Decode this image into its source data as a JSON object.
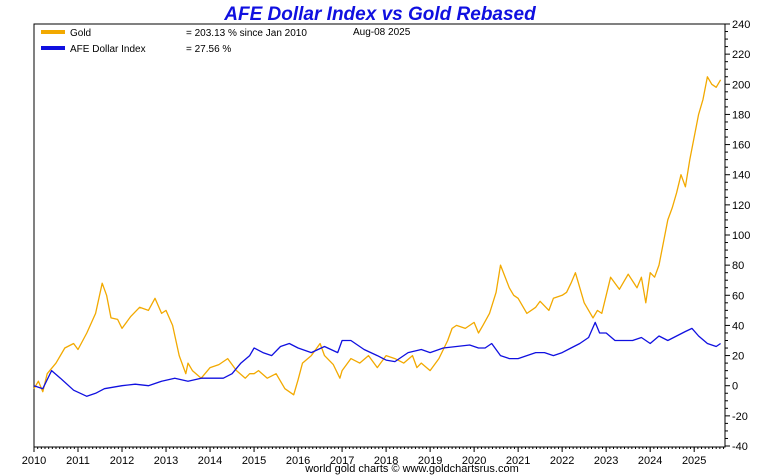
{
  "chart_data": {
    "type": "line",
    "title": "AFE Dollar Index vs Gold Rebased",
    "date_label": "Aug-08  2025",
    "footer": "world gold charts © www.goldchartsrus.com",
    "legend_placement": "top-left",
    "grid": false,
    "xlim": [
      2010,
      2025.7
    ],
    "ylim": [
      -40,
      240
    ],
    "x_ticks": [
      "2010",
      "2011",
      "2012",
      "2013",
      "2014",
      "2015",
      "2016",
      "2017",
      "2018",
      "2019",
      "2020",
      "2021",
      "2022",
      "2023",
      "2024",
      "2025"
    ],
    "y_ticks": [
      "240",
      "220",
      "200",
      "180",
      "160",
      "140",
      "120",
      "100",
      "80",
      "60",
      "40",
      "20",
      "0",
      "-20",
      "-40"
    ],
    "colors": {
      "title": "#1010e0",
      "gold": "#f2a900",
      "dollar": "#1010e0"
    },
    "series": [
      {
        "name": "Gold",
        "legend_value": "= 203.13 % since Jan 2010",
        "x": [
          2010.0,
          2010.1,
          2010.2,
          2010.3,
          2010.5,
          2010.7,
          2010.9,
          2011.0,
          2011.2,
          2011.4,
          2011.55,
          2011.65,
          2011.75,
          2011.9,
          2012.0,
          2012.2,
          2012.4,
          2012.6,
          2012.75,
          2012.9,
          2013.0,
          2013.15,
          2013.3,
          2013.45,
          2013.5,
          2013.6,
          2013.8,
          2014.0,
          2014.2,
          2014.4,
          2014.6,
          2014.8,
          2014.9,
          2015.0,
          2015.1,
          2015.3,
          2015.5,
          2015.7,
          2015.9,
          2016.0,
          2016.1,
          2016.3,
          2016.5,
          2016.6,
          2016.8,
          2016.95,
          2017.0,
          2017.2,
          2017.4,
          2017.6,
          2017.8,
          2018.0,
          2018.2,
          2018.4,
          2018.6,
          2018.7,
          2018.8,
          2019.0,
          2019.2,
          2019.4,
          2019.5,
          2019.6,
          2019.8,
          2020.0,
          2020.1,
          2020.2,
          2020.35,
          2020.5,
          2020.6,
          2020.8,
          2020.9,
          2021.0,
          2021.2,
          2021.4,
          2021.5,
          2021.7,
          2021.8,
          2022.0,
          2022.1,
          2022.2,
          2022.3,
          2022.5,
          2022.7,
          2022.8,
          2022.9,
          2023.0,
          2023.1,
          2023.3,
          2023.5,
          2023.7,
          2023.8,
          2023.9,
          2024.0,
          2024.1,
          2024.2,
          2024.3,
          2024.4,
          2024.5,
          2024.6,
          2024.7,
          2024.8,
          2024.9,
          2025.0,
          2025.1,
          2025.2,
          2025.3,
          2025.4,
          2025.5,
          2025.6
        ],
        "values": [
          -2,
          3,
          -4,
          8,
          15,
          25,
          28,
          24,
          35,
          48,
          68,
          60,
          45,
          44,
          38,
          46,
          52,
          50,
          58,
          48,
          50,
          40,
          20,
          8,
          15,
          10,
          5,
          12,
          14,
          18,
          10,
          5,
          8,
          8,
          10,
          5,
          8,
          -2,
          -6,
          4,
          15,
          20,
          28,
          20,
          14,
          5,
          10,
          18,
          15,
          20,
          12,
          20,
          18,
          15,
          20,
          12,
          15,
          10,
          18,
          30,
          38,
          40,
          38,
          42,
          35,
          40,
          48,
          62,
          80,
          65,
          60,
          58,
          48,
          52,
          56,
          50,
          58,
          60,
          62,
          68,
          75,
          55,
          45,
          50,
          48,
          60,
          72,
          64,
          74,
          65,
          72,
          55,
          75,
          72,
          80,
          95,
          110,
          118,
          128,
          140,
          132,
          150,
          165,
          180,
          190,
          205,
          200,
          198,
          203
        ]
      },
      {
        "name": "AFE Dollar Index",
        "legend_value": "= 27.56 %",
        "x": [
          2010.0,
          2010.2,
          2010.4,
          2010.6,
          2010.9,
          2011.2,
          2011.4,
          2011.6,
          2011.8,
          2012.0,
          2012.3,
          2012.6,
          2012.9,
          2013.2,
          2013.5,
          2013.8,
          2014.0,
          2014.3,
          2014.5,
          2014.7,
          2014.9,
          2015.0,
          2015.2,
          2015.4,
          2015.6,
          2015.8,
          2016.0,
          2016.3,
          2016.6,
          2016.9,
          2017.0,
          2017.2,
          2017.5,
          2017.8,
          2018.0,
          2018.2,
          2018.5,
          2018.8,
          2019.0,
          2019.3,
          2019.6,
          2019.9,
          2020.1,
          2020.25,
          2020.4,
          2020.6,
          2020.8,
          2021.0,
          2021.2,
          2021.4,
          2021.6,
          2021.8,
          2022.0,
          2022.2,
          2022.4,
          2022.6,
          2022.75,
          2022.85,
          2023.0,
          2023.2,
          2023.4,
          2023.6,
          2023.8,
          2024.0,
          2024.2,
          2024.4,
          2024.6,
          2024.8,
          2024.95,
          2025.1,
          2025.3,
          2025.5,
          2025.6
        ],
        "values": [
          0,
          -2,
          10,
          5,
          -3,
          -7,
          -5,
          -2,
          -1,
          0,
          1,
          0,
          3,
          5,
          3,
          5,
          5,
          5,
          8,
          15,
          20,
          25,
          22,
          20,
          26,
          28,
          25,
          22,
          26,
          22,
          30,
          30,
          24,
          20,
          17,
          16,
          22,
          24,
          22,
          25,
          26,
          27,
          25,
          25,
          28,
          20,
          18,
          18,
          20,
          22,
          22,
          20,
          22,
          25,
          28,
          32,
          42,
          35,
          35,
          30,
          30,
          30,
          32,
          28,
          33,
          30,
          33,
          36,
          38,
          33,
          28,
          26,
          28
        ]
      }
    ]
  }
}
